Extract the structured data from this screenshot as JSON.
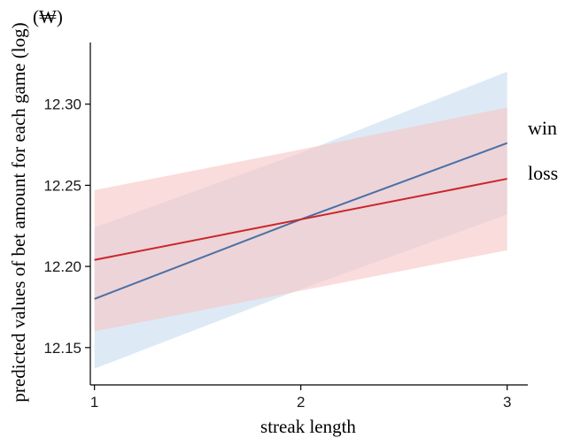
{
  "chart_data": {
    "type": "line",
    "xlabel": "streak length",
    "ylabel": "predicted values of bet amount for each game (log)",
    "unit_label": "(₩)",
    "x": [
      1,
      2,
      3
    ],
    "x_ticks": [
      "1",
      "2",
      "3"
    ],
    "y_ticks": [
      "12.15",
      "12.20",
      "12.25",
      "12.30"
    ],
    "xlim": [
      0.98,
      3.1
    ],
    "ylim": [
      12.127,
      12.338
    ],
    "grid": false,
    "series": [
      {
        "name": "win",
        "color": "#4a6fa5",
        "band_color": "#c6dcef",
        "values": [
          12.18,
          12.229,
          12.276
        ],
        "lower": [
          12.137,
          12.186,
          12.232
        ],
        "upper": [
          12.224,
          12.27,
          12.32
        ]
      },
      {
        "name": "loss",
        "color": "#cc2529",
        "band_color": "#f7c4c4",
        "values": [
          12.204,
          12.229,
          12.254
        ],
        "lower": [
          12.16,
          12.185,
          12.21
        ],
        "upper": [
          12.247,
          12.272,
          12.298
        ]
      }
    ]
  }
}
